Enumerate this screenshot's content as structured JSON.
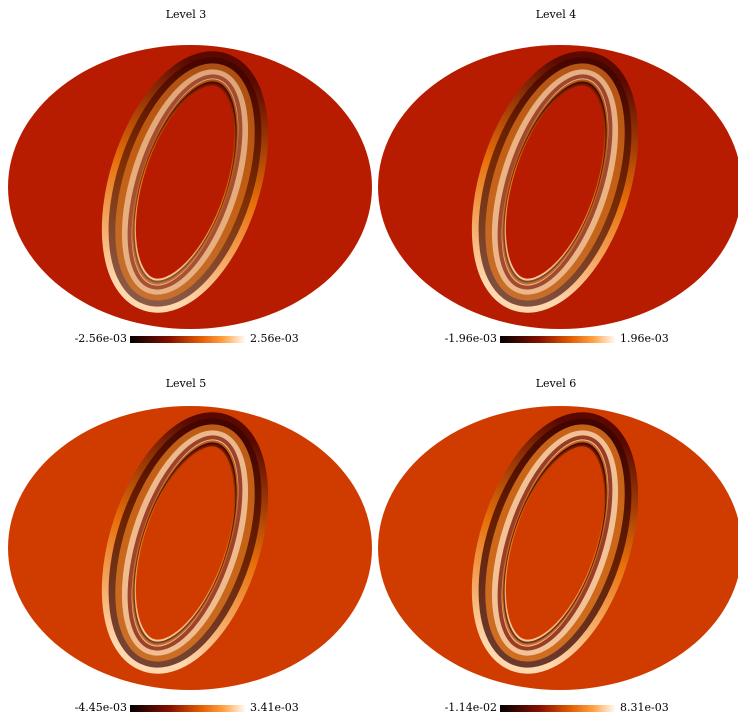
{
  "panels": [
    {
      "title": "Level 3",
      "min_label": "-2.56e-03",
      "max_label": "2.56e-03"
    },
    {
      "title": "Level 4",
      "min_label": "-1.96e-03",
      "max_label": "1.96e-03"
    },
    {
      "title": "Level 5",
      "min_label": "-4.45e-03",
      "max_label": "3.41e-03"
    },
    {
      "title": "Level 6",
      "min_label": "-1.14e-02",
      "max_label": "8.31e-03"
    }
  ]
}
